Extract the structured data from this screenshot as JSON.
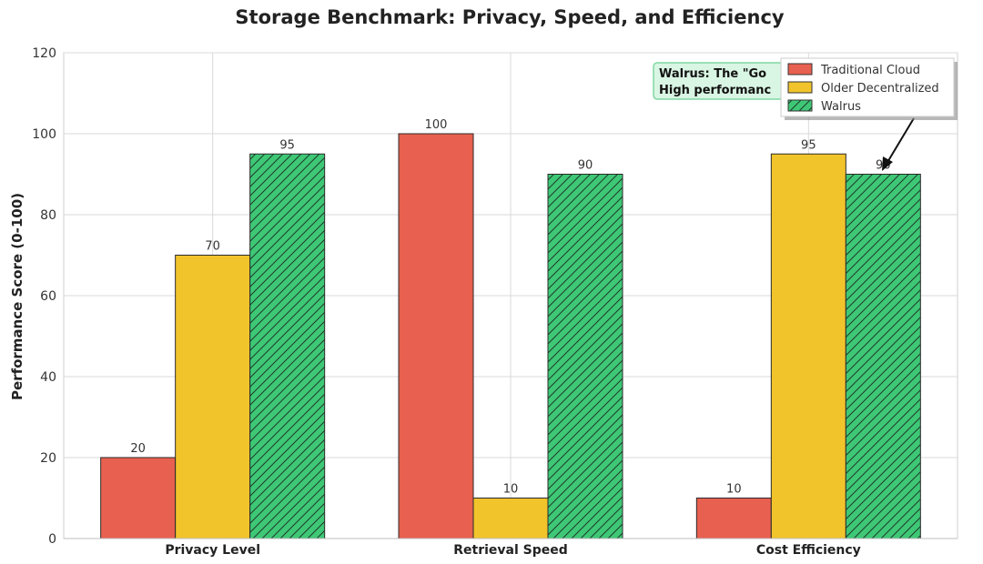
{
  "chart_data": {
    "type": "bar",
    "title": "Storage Benchmark: Privacy, Speed, and Efficiency",
    "xlabel": "",
    "ylabel": "Performance Score (0-100)",
    "ylim": [
      0,
      120
    ],
    "yticks": [
      0,
      20,
      40,
      60,
      80,
      100,
      120
    ],
    "categories": [
      "Privacy Level",
      "Retrieval Speed",
      "Cost Efficiency"
    ],
    "series": [
      {
        "name": "Traditional Cloud",
        "color": "#e8604f",
        "hatch": false,
        "values": [
          20,
          100,
          10
        ]
      },
      {
        "name": "Older Decentralized",
        "color": "#f2c42c",
        "hatch": false,
        "values": [
          70,
          10,
          95
        ]
      },
      {
        "name": "Walrus",
        "color": "#3ec876",
        "hatch": true,
        "values": [
          95,
          90,
          90
        ]
      }
    ],
    "grid": true,
    "legend_position": "top-right",
    "annotation": {
      "line1": "Walrus: The \"Go",
      "line2": "High performanc",
      "target_category": "Cost Efficiency",
      "target_series": "Walrus",
      "box_color": "#d9f5e3",
      "box_border": "#7fd9a3"
    }
  }
}
